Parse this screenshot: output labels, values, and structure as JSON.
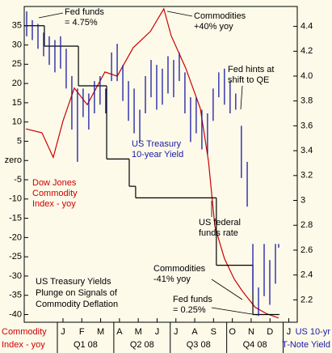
{
  "chart_data": {
    "type": "line",
    "title": [
      "US Treasury Yields",
      "Plunge on Signals of",
      "Commodity Deflation"
    ],
    "xlim": [
      -2.06,
      12.45
    ],
    "xticks": [
      {
        "value": 0,
        "label": "J"
      },
      {
        "value": 1,
        "label": "F"
      },
      {
        "value": 2,
        "label": "M"
      },
      {
        "value": 3,
        "label": "A"
      },
      {
        "value": 4,
        "label": "M"
      },
      {
        "value": 5,
        "label": "J"
      },
      {
        "value": 6,
        "label": "J"
      },
      {
        "value": 7,
        "label": "A"
      },
      {
        "value": 8,
        "label": "S"
      },
      {
        "value": 9,
        "label": "O"
      },
      {
        "value": 10,
        "label": "N"
      },
      {
        "value": 11,
        "label": "D"
      },
      {
        "value": 12,
        "label": "J"
      }
    ],
    "quarters": [
      "Q1 08",
      "Q2 08",
      "Q3 08",
      "Q4 08"
    ],
    "ylim": [
      -42,
      40
    ],
    "yticks": [
      35,
      30,
      25,
      20,
      15,
      10,
      5,
      {
        "value": 0,
        "label": "zero"
      },
      -5,
      -10,
      -15,
      -20,
      -25,
      -30,
      -35,
      -40
    ],
    "y2lim": [
      2.02,
      4.56
    ],
    "y2ticks": [
      4.4,
      4.2,
      {
        "value": 4.0,
        "label": "4.0"
      },
      3.8,
      3.6,
      3.4,
      3.2,
      {
        "value": 3.0,
        "label": "3"
      },
      2.8,
      2.6,
      2.4,
      2.2
    ],
    "ylabel": [
      "Commodity",
      "Index - yoy"
    ],
    "y2label": [
      "US 10-yr",
      "T-Note Yield"
    ],
    "series": [
      {
        "name": [
          "Dow Jones",
          "Commodity",
          "Index - yoy"
        ],
        "color": "#cc0000",
        "x": [
          -1.97,
          -1.12,
          -0.52,
          0,
          0.6,
          1.29,
          2.23,
          2.88,
          3.73,
          4.64,
          5.36,
          5.75,
          6.52,
          7.3,
          7.73,
          8.07,
          8.58,
          9.1,
          9.53,
          10.21,
          10.82,
          11.46
        ],
        "values": [
          8.2,
          7.2,
          0.8,
          10.3,
          18.8,
          14.5,
          23.0,
          21.9,
          29.3,
          33.5,
          39.4,
          32.4,
          24.0,
          13.5,
          -0.2,
          -17.1,
          -25.5,
          -30.8,
          -33.9,
          -38.1,
          -39.8,
          -40.9
        ]
      },
      {
        "name": [
          "US federal",
          "funds rate"
        ],
        "color": "#000000",
        "step": true,
        "x": [
          -2.06,
          -0.99,
          0.82,
          2.32,
          3.52,
          3.86,
          8.15,
          10.09,
          11.46
        ],
        "values": [
          35,
          29.7,
          19.4,
          0.4,
          -6.7,
          -9.7,
          -27.2,
          -40,
          -40
        ]
      },
      {
        "name": [
          "US Treasury",
          "10-year Yield"
        ],
        "color": "#1a1aa6",
        "axis": "y2",
        "hilo": true,
        "x": [
          -1.93,
          -1.63,
          -1.33,
          -1.03,
          -0.73,
          -0.43,
          -0.13,
          0.17,
          0.47,
          0.77,
          1.07,
          1.37,
          1.67,
          1.97,
          2.27,
          2.58,
          2.88,
          3.18,
          3.48,
          3.78,
          4.08,
          4.38,
          4.68,
          4.98,
          5.28,
          5.58,
          5.88,
          6.18,
          6.48,
          6.78,
          7.08,
          7.38,
          7.68,
          7.98,
          8.28,
          8.58,
          8.88,
          9.18,
          9.48,
          9.79,
          10.09,
          10.39,
          10.69,
          10.99,
          11.29,
          11.46
        ],
        "high": [
          4.52,
          4.45,
          4.42,
          4.35,
          4.32,
          4.29,
          4.32,
          4.22,
          4.0,
          3.9,
          3.9,
          3.86,
          3.96,
          4.0,
          3.9,
          4.19,
          4.26,
          4.09,
          3.96,
          3.9,
          3.73,
          4.0,
          4.13,
          4.09,
          4.06,
          4.16,
          4.13,
          4.19,
          4.03,
          3.83,
          3.83,
          3.73,
          3.7,
          3.9,
          4.03,
          4.06,
          3.96,
          3.86,
          3.6,
          3.31,
          2.65,
          2.3,
          2.65,
          2.52,
          2.65,
          2.65
        ],
        "low": [
          4.32,
          4.29,
          4.22,
          4.16,
          4.09,
          4.03,
          4.06,
          3.9,
          3.57,
          3.31,
          3.67,
          3.57,
          3.7,
          3.77,
          3.7,
          3.96,
          3.96,
          3.8,
          3.64,
          3.54,
          3.47,
          3.7,
          3.83,
          3.73,
          3.77,
          3.86,
          3.83,
          3.96,
          3.7,
          3.47,
          3.54,
          3.41,
          3.37,
          3.64,
          3.83,
          3.77,
          3.7,
          3.73,
          3.18,
          2.95,
          2.26,
          2.07,
          2.23,
          2.16,
          2.33,
          2.62
        ]
      }
    ],
    "annotations": [
      [
        "Fed funds",
        "= 4.75%"
      ],
      [
        "Commodities",
        "+40% yoy"
      ],
      [
        "Fed hints at",
        "shift to QE"
      ],
      [
        "Commodities",
        "-41% yoy"
      ],
      [
        "Fed funds",
        "= 0.25%"
      ]
    ]
  }
}
